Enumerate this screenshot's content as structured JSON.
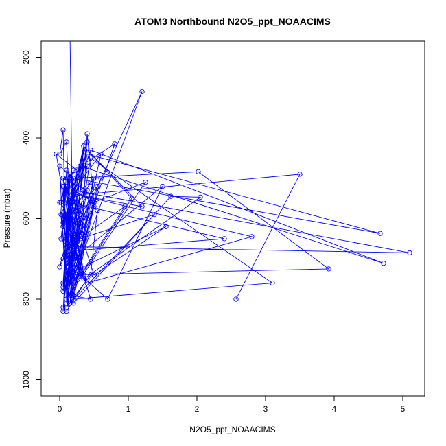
{
  "chart_data": {
    "type": "line",
    "title": "ATOM3 Northbound N2O5_ppt_NOAACIMS",
    "xlabel": "N2O5_ppt_NOAACIMS",
    "ylabel": "Pressure (mbar)",
    "xlim": [
      -0.27,
      5.32
    ],
    "ylim": [
      1040,
      160
    ],
    "y_reversed": true,
    "grid": false,
    "x_ticks": [
      0,
      1,
      2,
      3,
      4,
      5
    ],
    "y_ticks": [
      200,
      400,
      600,
      800,
      1000
    ],
    "series": [
      {
        "line_color": "#0000ff",
        "marker": "open-circle",
        "x": [
          0.15,
          0.2,
          0.1,
          0.0,
          0.05,
          0.1,
          0.2,
          0.0,
          0.08,
          0.05,
          0.18,
          0.02,
          0.12,
          0.3,
          0.4,
          0.5,
          0.1,
          0.15,
          0.05,
          0.2,
          0.0,
          0.1,
          0.3,
          0.15,
          0.05,
          0.25,
          -0.05,
          0.1,
          0.2,
          0.6,
          0.35,
          0.12,
          0.08,
          0.02,
          0.2,
          0.4,
          0.1,
          0.3,
          0.05,
          0.18,
          0.0,
          1.2,
          0.2,
          0.35,
          0.1,
          0.45,
          0.15,
          0.05,
          0.25,
          0.02,
          0.1,
          0.35,
          0.2,
          0.4,
          0.15,
          0.3,
          0.8,
          0.2,
          0.05,
          0.4,
          0.1,
          0.45,
          0.55,
          0.15,
          0.05,
          0.2,
          0.1,
          0.3,
          0.05,
          0.15,
          2.4,
          0.2,
          0.1,
          0.3,
          0.05,
          0.4,
          2.8,
          0.25,
          0.1,
          0.2,
          0.05,
          0.35,
          0.15,
          0.45,
          0.1,
          0.2,
          0.05,
          0.3,
          0.7,
          1.5,
          0.2,
          0.1,
          0.05,
          0.3,
          0.95,
          0.2,
          0.1,
          0.4,
          0.15,
          0.05,
          0.25,
          0.1,
          0.35,
          1.2,
          0.2,
          0.15,
          0.3,
          0.6,
          0.1,
          0.4,
          0.05,
          0.2,
          1.05,
          0.35,
          0.1,
          0.45,
          0.2,
          0.5,
          0.15,
          1.38,
          0.3,
          0.1,
          1.55,
          0.5,
          0.2,
          1.25,
          0.1,
          0.4,
          0.05,
          0.3,
          0.15,
          0.45,
          0.2,
          0.55,
          0.1,
          0.35,
          2.05,
          1.62,
          0.2,
          0.1,
          0.45,
          4.72,
          0.3,
          0.15,
          0.5,
          0.2,
          5.1,
          0.25,
          0.1,
          0.4,
          4.67,
          0.2,
          2.02,
          3.92,
          0.15,
          0.3,
          0.45,
          3.1,
          0.2,
          0.5,
          0.1,
          0.35,
          3.5,
          2.57
        ],
        "y": [
          140,
          800,
          410,
          440,
          380,
          810,
          500,
          470,
          760,
          520,
          790,
          560,
          600,
          740,
          390,
          560,
          720,
          500,
          830,
          480,
          560,
          740,
          600,
          500,
          760,
          480,
          440,
          600,
          530,
          440,
          640,
          500,
          690,
          590,
          520,
          410,
          770,
          630,
          500,
          600,
          720,
          285,
          750,
          420,
          610,
          510,
          550,
          780,
          700,
          650,
          520,
          740,
          540,
          430,
          600,
          470,
          415,
          720,
          500,
          470,
          820,
          740,
          580,
          490,
          770,
          700,
          530,
          740,
          620,
          560,
          650,
          680,
          820,
          590,
          700,
          760,
          645,
          540,
          800,
          730,
          610,
          450,
          790,
          800,
          600,
          510,
          760,
          740,
          800,
          520,
          700,
          480,
          620,
          740,
          570,
          660,
          830,
          750,
          700,
          820,
          560,
          650,
          420,
          570,
          540,
          580,
          700,
          500,
          820,
          600,
          550,
          770,
          550,
          420,
          760,
          550,
          700,
          500,
          810,
          590,
          650,
          740,
          620,
          740,
          580,
          510,
          800,
          530,
          500,
          740,
          610,
          560,
          790,
          520,
          600,
          750,
          547,
          545,
          810,
          600,
          430,
          711,
          470,
          810,
          560,
          530,
          685,
          670,
          720,
          440,
          637,
          500,
          484,
          725,
          740,
          610,
          450,
          760,
          800,
          570,
          700,
          540,
          490,
          800
        ]
      }
    ]
  }
}
